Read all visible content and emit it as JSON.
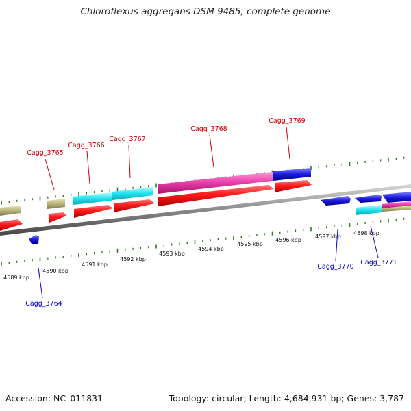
{
  "title": "Chloroflexus aggregans DSM 9485, complete genome",
  "footer": {
    "accession": "Accession: NC_011831",
    "summary": "Topology: circular; Length: 4,684,931 bp; Genes: 3,787"
  },
  "colors": {
    "forward_label": "#cc0000",
    "reverse_label": "#0000cc",
    "tick": "#2f7a1f",
    "backbone": "#777777",
    "gene_red": "#ff1a1a",
    "gene_cyan": "#1fe3ef",
    "gene_magenta": "#e83aa8",
    "gene_blue": "#1a1ae0",
    "gene_olive": "#b9b47a"
  },
  "scale_labels": [
    "4589 kbp",
    "4590 kbp",
    "4591 kbp",
    "4592 kbp",
    "4593 kbp",
    "4594 kbp",
    "4595 kbp",
    "4596 kbp",
    "4597 kbp",
    "4598 kbp"
  ],
  "gene_labels": {
    "forward": [
      "Cagg_3765",
      "Cagg_3766",
      "Cagg_3767",
      "Cagg_3768",
      "Cagg_3769"
    ],
    "reverse": [
      "Cagg_3764",
      "Cagg_3770",
      "Cagg_3771"
    ]
  }
}
